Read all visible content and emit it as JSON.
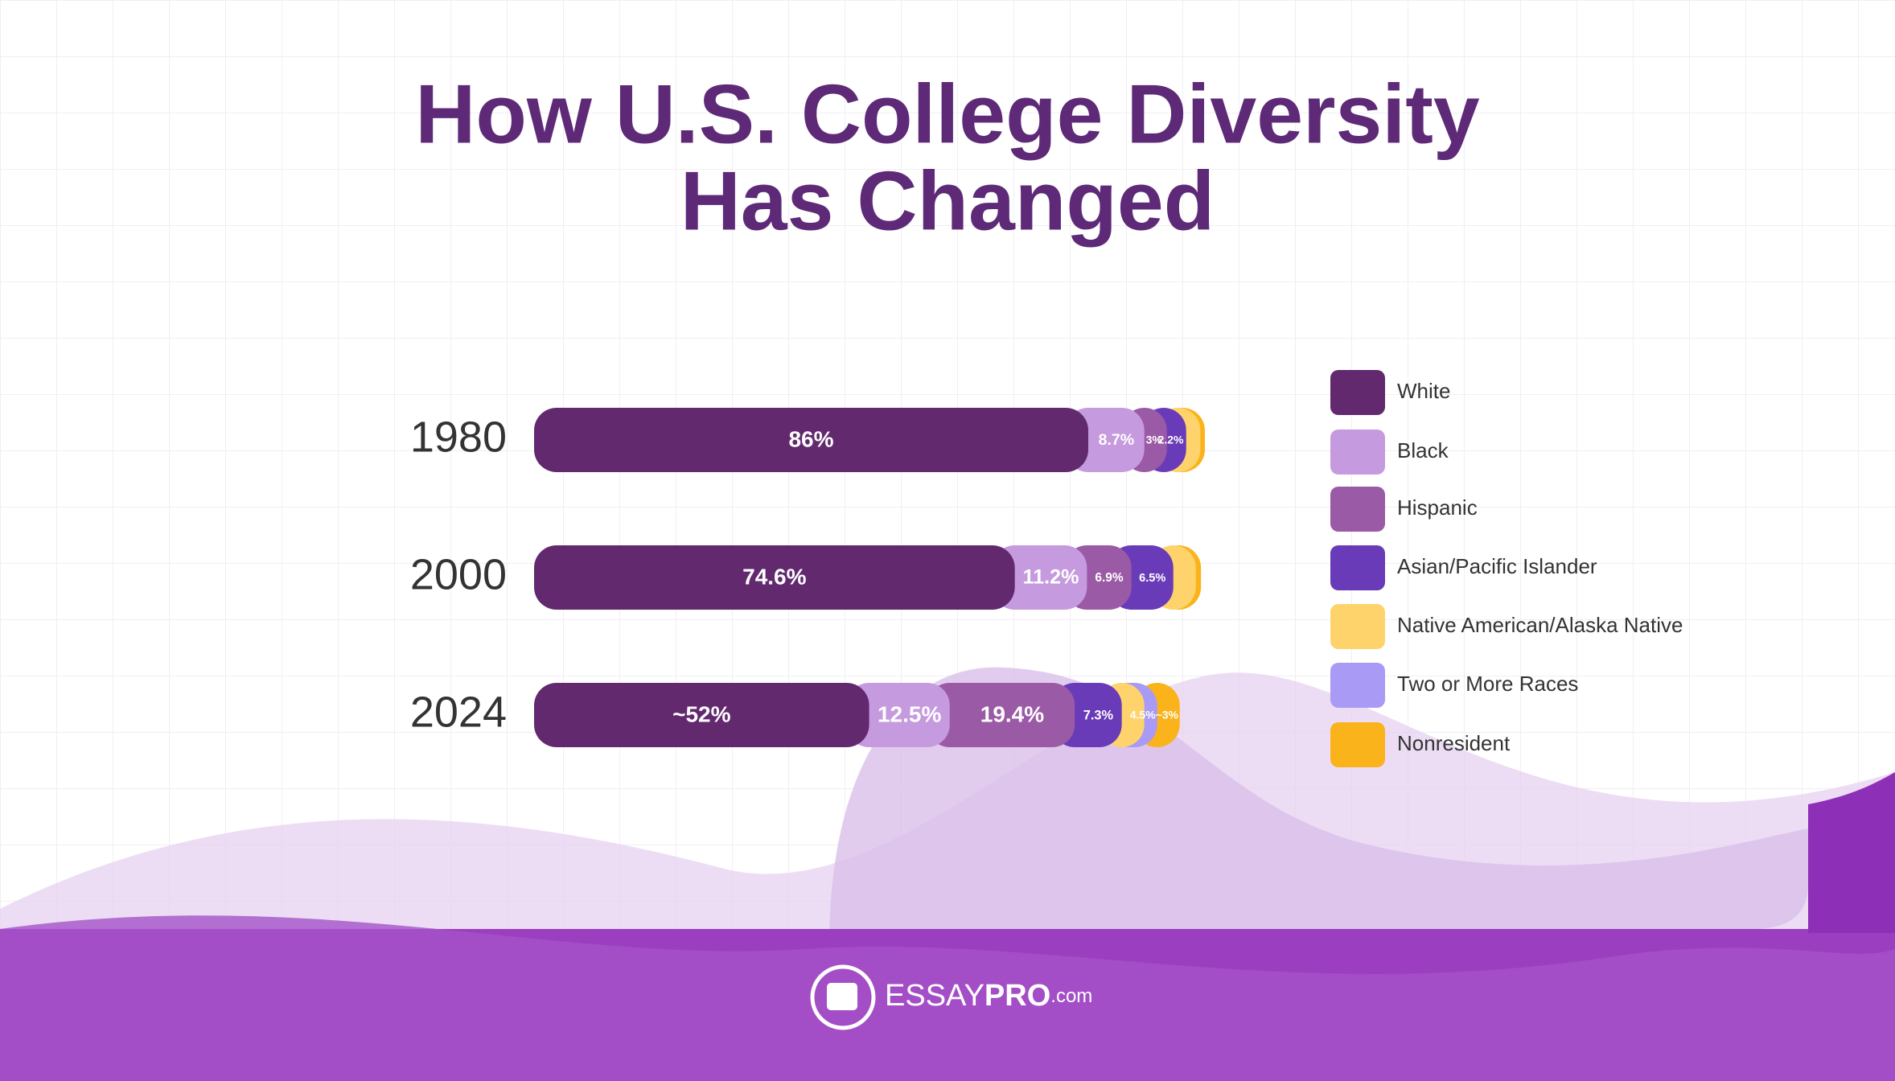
{
  "chart_data": {
    "type": "stacked-bar",
    "orientation": "horizontal",
    "title": [
      "How U.S. College Diversity",
      "Has Changed"
    ],
    "categories": [
      "1980",
      "2000",
      "2024"
    ],
    "series": [
      {
        "name": "White",
        "color": "#62296f",
        "values": [
          86,
          74.6,
          52
        ],
        "value_labels": [
          "86%",
          "74.6%",
          "~52%"
        ]
      },
      {
        "name": "Black",
        "color": "#c69ade",
        "values": [
          8.7,
          11.2,
          12.5
        ],
        "value_labels": [
          "8.7%",
          "11.2%",
          "12.5%"
        ]
      },
      {
        "name": "Hispanic",
        "color": "#9a5aa6",
        "values": [
          3,
          6.9,
          19.4
        ],
        "value_labels": [
          "3%",
          "6.9%",
          "19.4%"
        ]
      },
      {
        "name": "Asian/Pacific Islander",
        "color": "#6a3bb8",
        "values": [
          2.2,
          6.5,
          7.3
        ],
        "value_labels": [
          "2.2%",
          "6.5%",
          "7.3%"
        ]
      },
      {
        "name": "Native American/Alaska Native",
        "color": "#ffd36b",
        "values": [
          0.7,
          0.8,
          1
        ],
        "value_labels": [
          null,
          null,
          null
        ]
      },
      {
        "name": "Two or More Races",
        "color": "#a99af5",
        "values": [
          null,
          null,
          4.5
        ],
        "value_labels": [
          null,
          null,
          "4.5%"
        ]
      },
      {
        "name": "Nonresident",
        "color": "#fbb31b",
        "values": [
          2,
          2,
          3
        ],
        "value_labels": [
          null,
          null,
          "~3%"
        ]
      }
    ],
    "legend": "right"
  },
  "brand": {
    "parts": [
      "ESSAY",
      "PRO",
      ".com"
    ]
  }
}
